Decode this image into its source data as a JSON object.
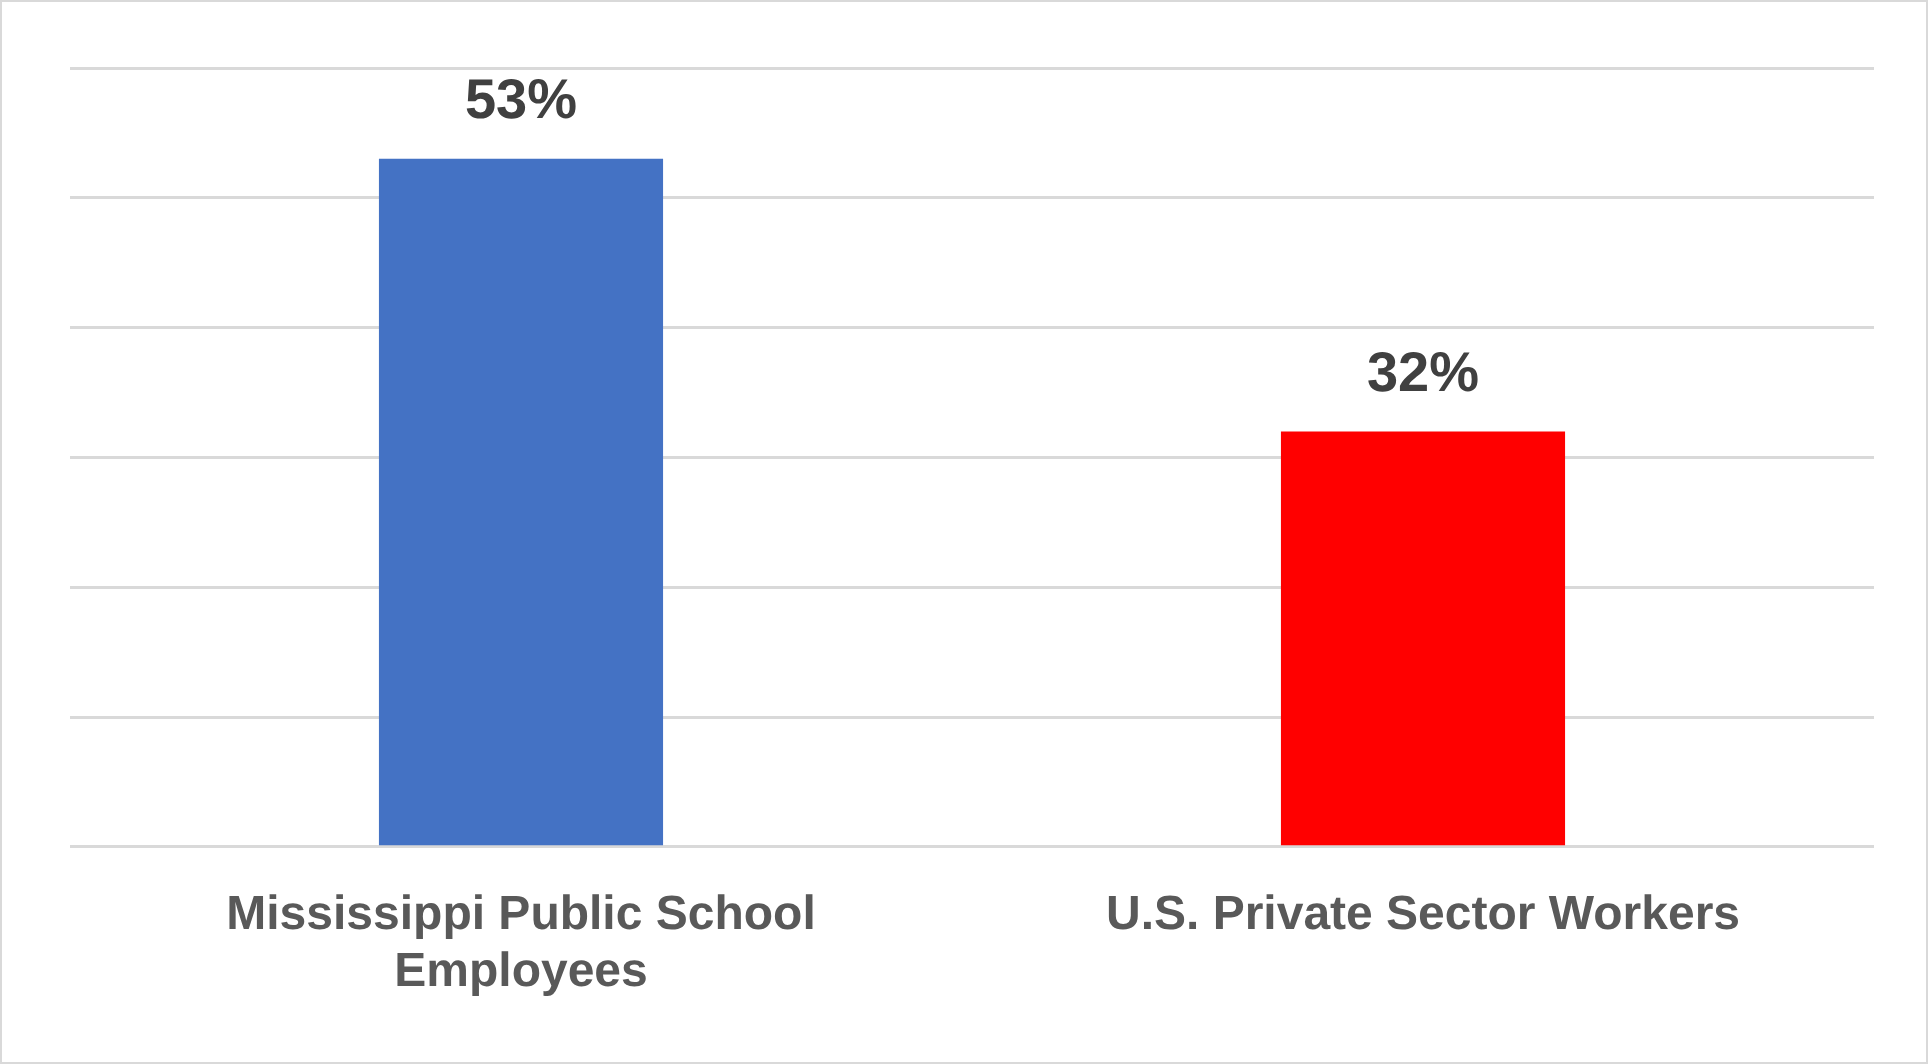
{
  "chart_data": {
    "type": "bar",
    "categories": [
      "Mississippi Public School Employees",
      "U.S. Private Sector Workers"
    ],
    "values": [
      53,
      32
    ],
    "colors": [
      "#4472c4",
      "#ff0000"
    ],
    "value_labels": [
      "53%",
      "32%"
    ],
    "ylim": [
      0,
      60
    ],
    "yticks": [
      {
        "value": 0,
        "label": null
      },
      {
        "value": 10,
        "label": null
      },
      {
        "value": 20,
        "label": null
      },
      {
        "value": 30,
        "label": null
      },
      {
        "value": 40,
        "label": null
      },
      {
        "value": 50,
        "label": null
      },
      {
        "value": 60,
        "label": null
      }
    ],
    "grid": "y",
    "tick_labels": "x",
    "legend": false
  }
}
